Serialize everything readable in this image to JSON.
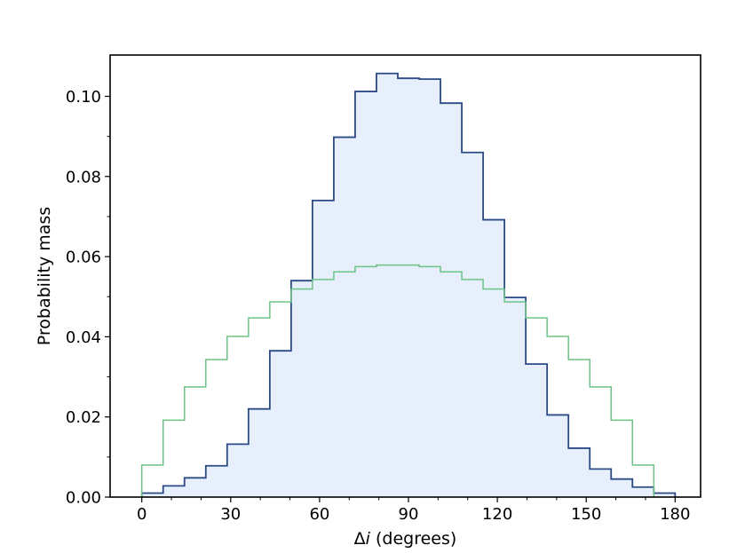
{
  "chart_data": {
    "type": "histogram",
    "xlabel_prefix": "Δ",
    "xlabel_var": "i",
    "xlabel_suffix": " (degrees)",
    "ylabel": "Probability mass",
    "xlim": [
      -10.7,
      188.6
    ],
    "ylim": [
      0,
      0.1103
    ],
    "bin_edges": [
      0,
      7.2,
      14.4,
      21.6,
      28.8,
      36,
      43.2,
      50.4,
      57.6,
      64.8,
      72,
      79.2,
      86.4,
      93.6,
      100.8,
      108,
      115.2,
      122.4,
      129.6,
      136.8,
      144,
      151.2,
      158.4,
      165.6,
      172.8,
      180
    ],
    "x_ticks": [
      0,
      30,
      60,
      90,
      120,
      150,
      180
    ],
    "x_tick_labels": [
      "0",
      "30",
      "60",
      "90",
      "120",
      "150",
      "180"
    ],
    "y_ticks": [
      0,
      0.02,
      0.04,
      0.06,
      0.08,
      0.1
    ],
    "y_tick_labels": [
      "0.00",
      "0.02",
      "0.04",
      "0.06",
      "0.08",
      "0.10"
    ],
    "x_minor_ticks": [
      10,
      20,
      40,
      50,
      70,
      80,
      100,
      110,
      130,
      140,
      160,
      170
    ],
    "y_minor_ticks": [
      0.01,
      0.03,
      0.05,
      0.07,
      0.09
    ],
    "grid": false,
    "legend": "none",
    "series": [
      {
        "color": "#2c4a86",
        "fill": "#e6effb",
        "values": [
          0.001,
          0.0028,
          0.0048,
          0.0078,
          0.0132,
          0.022,
          0.0365,
          0.054,
          0.074,
          0.0898,
          0.1012,
          0.1057,
          0.1045,
          0.1043,
          0.0983,
          0.086,
          0.0692,
          0.0498,
          0.0332,
          0.0205,
          0.0122,
          0.007,
          0.0045,
          0.0025,
          0.001
        ]
      },
      {
        "color": "#6cc486",
        "values": [
          0.008,
          0.0192,
          0.0275,
          0.0343,
          0.0401,
          0.0447,
          0.0487,
          0.0519,
          0.0543,
          0.0562,
          0.0575,
          0.0579,
          0.0579,
          0.0575,
          0.0562,
          0.0543,
          0.0519,
          0.0487,
          0.0447,
          0.0401,
          0.0343,
          0.0275,
          0.0192,
          0.008
        ]
      }
    ]
  }
}
